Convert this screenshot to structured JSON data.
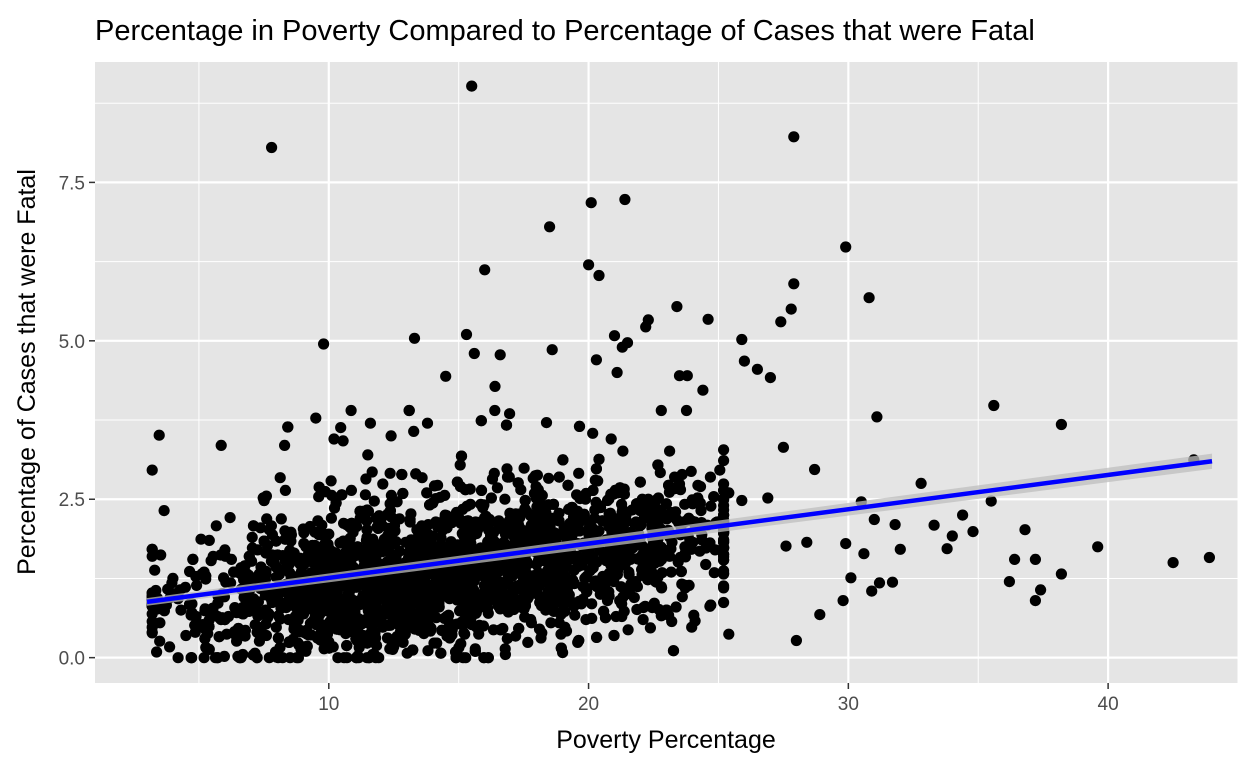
{
  "chart_data": {
    "type": "scatter",
    "title": "Percentage in Poverty Compared to Percentage of Cases that were Fatal",
    "xlabel": "Poverty Percentage",
    "ylabel": "Percentage of Cases that were Fatal",
    "xlim": [
      1,
      45
    ],
    "ylim": [
      -0.4,
      9.4
    ],
    "x_ticks": [
      10,
      20,
      30,
      40
    ],
    "x_tick_labels": [
      "10",
      "20",
      "30",
      "40"
    ],
    "y_ticks": [
      0,
      2.5,
      5,
      7.5
    ],
    "y_tick_labels": [
      "0.0",
      "2.5",
      "5.0",
      "7.5"
    ],
    "grid": true,
    "background": "#e5e5e5",
    "grid_color": "#ffffff",
    "point_color": "#000000",
    "trend_color": "#0000ff",
    "ribbon_color": "#bdbdbd",
    "trendline": {
      "method": "linear",
      "x": [
        3,
        44
      ],
      "y": [
        0.88,
        3.1
      ],
      "ci_halfwidth": [
        0.06,
        0.12
      ]
    },
    "dense_cluster": {
      "description_x_range": [
        3,
        25
      ],
      "count": 2600,
      "y_max": 3.9
    },
    "points": [
      [
        15.5,
        9.02
      ],
      [
        27.9,
        8.22
      ],
      [
        7.8,
        8.05
      ],
      [
        21.4,
        7.23
      ],
      [
        20.1,
        7.18
      ],
      [
        18.5,
        6.8
      ],
      [
        29.9,
        6.48
      ],
      [
        16.0,
        6.12
      ],
      [
        20.0,
        6.2
      ],
      [
        20.4,
        6.03
      ],
      [
        27.9,
        5.9
      ],
      [
        30.8,
        5.68
      ],
      [
        23.4,
        5.54
      ],
      [
        24.6,
        5.34
      ],
      [
        27.4,
        5.3
      ],
      [
        27.8,
        5.5
      ],
      [
        22.3,
        5.33
      ],
      [
        22.2,
        5.22
      ],
      [
        21.0,
        5.08
      ],
      [
        15.3,
        5.1
      ],
      [
        13.3,
        5.04
      ],
      [
        9.8,
        4.95
      ],
      [
        25.9,
        5.02
      ],
      [
        21.5,
        4.97
      ],
      [
        21.3,
        4.9
      ],
      [
        26.0,
        4.68
      ],
      [
        20.3,
        4.7
      ],
      [
        16.6,
        4.78
      ],
      [
        15.6,
        4.8
      ],
      [
        18.6,
        4.86
      ],
      [
        23.5,
        4.45
      ],
      [
        23.8,
        4.45
      ],
      [
        26.5,
        4.55
      ],
      [
        27.0,
        4.42
      ],
      [
        14.5,
        4.44
      ],
      [
        24.4,
        4.22
      ],
      [
        21.1,
        4.5
      ],
      [
        16.4,
        4.28
      ],
      [
        35.6,
        3.98
      ],
      [
        38.2,
        3.68
      ],
      [
        31.1,
        3.8
      ],
      [
        27.5,
        3.32
      ],
      [
        28.7,
        2.97
      ],
      [
        32.8,
        2.75
      ],
      [
        43.3,
        3.12
      ],
      [
        30.5,
        2.46
      ],
      [
        35.5,
        2.47
      ],
      [
        39.6,
        1.75
      ],
      [
        42.5,
        1.5
      ],
      [
        43.9,
        1.58
      ],
      [
        38.2,
        1.32
      ],
      [
        37.4,
        1.07
      ],
      [
        37.2,
        0.9
      ],
      [
        36.2,
        1.2
      ],
      [
        36.4,
        1.55
      ],
      [
        37.2,
        1.55
      ],
      [
        36.8,
        2.02
      ],
      [
        34.4,
        2.25
      ],
      [
        34.0,
        1.92
      ],
      [
        34.8,
        1.99
      ],
      [
        33.3,
        2.09
      ],
      [
        33.8,
        1.72
      ],
      [
        31.8,
        2.1
      ],
      [
        31.0,
        2.18
      ],
      [
        32.0,
        1.71
      ],
      [
        31.2,
        1.18
      ],
      [
        30.1,
        1.26
      ],
      [
        29.8,
        0.9
      ],
      [
        30.9,
        1.05
      ],
      [
        28.0,
        0.27
      ],
      [
        28.9,
        0.68
      ],
      [
        25.4,
        0.37
      ],
      [
        31.7,
        1.19
      ],
      [
        30.6,
        1.64
      ],
      [
        29.9,
        1.8
      ],
      [
        28.4,
        1.82
      ],
      [
        27.6,
        1.76
      ],
      [
        26.9,
        2.52
      ],
      [
        25.9,
        2.48
      ],
      [
        25.4,
        2.6
      ],
      [
        24.9,
        2.13
      ],
      [
        8.3,
        3.35
      ],
      [
        9.5,
        3.78
      ],
      [
        13.8,
        3.7
      ],
      [
        7.6,
        2.55
      ],
      [
        4.0,
        1.25
      ],
      [
        3.9,
        0.95
      ],
      [
        4.2,
        0.0
      ],
      [
        5.2,
        0.0
      ],
      [
        6.5,
        0.02
      ],
      [
        16.8,
        0.05
      ],
      [
        19.0,
        0.08
      ],
      [
        22.1,
        0.6
      ],
      [
        24.1,
        0.58
      ],
      [
        3.5,
        0.55
      ],
      [
        4.5,
        0.35
      ],
      [
        6.0,
        1.7
      ],
      [
        10.2,
        3.45
      ],
      [
        12.4,
        3.5
      ],
      [
        11.5,
        3.2
      ]
    ]
  }
}
